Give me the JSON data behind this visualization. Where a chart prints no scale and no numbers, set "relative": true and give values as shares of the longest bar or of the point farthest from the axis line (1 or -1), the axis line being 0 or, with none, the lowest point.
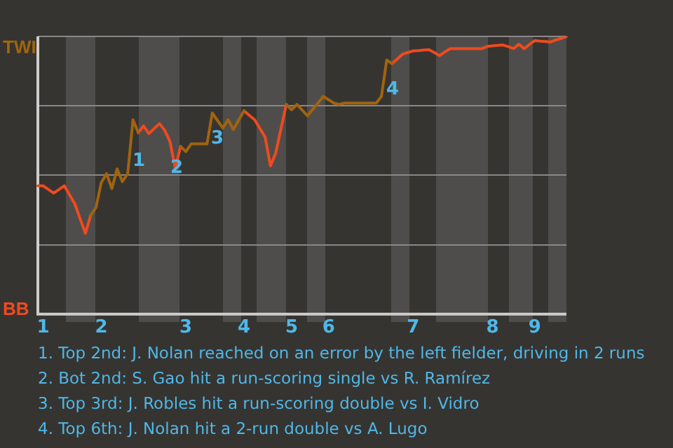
{
  "chart_data": {
    "type": "line",
    "relative": true,
    "categories": [
      null,
      "1",
      null,
      null,
      null,
      null,
      null,
      null,
      null,
      null,
      null,
      null,
      "2",
      null,
      null,
      null,
      null,
      null,
      null,
      null,
      null,
      null,
      null,
      null,
      null,
      null,
      null,
      null,
      "3",
      null,
      null,
      null,
      null,
      null,
      null,
      null,
      null,
      null,
      null,
      "4",
      null,
      null,
      null,
      null,
      null,
      null,
      null,
      null,
      "5",
      null,
      null,
      null,
      null,
      null,
      null,
      "6",
      null,
      null,
      null,
      null,
      null,
      null,
      null,
      null,
      null,
      null,
      null,
      null,
      null,
      null,
      null,
      "7",
      null,
      null,
      null,
      null,
      null,
      null,
      null,
      null,
      null,
      null,
      null,
      null,
      null,
      null,
      "8",
      null,
      null,
      null,
      null,
      null,
      null,
      null,
      "9",
      null,
      null,
      null,
      null,
      null,
      null
    ],
    "grid": "y",
    "marker": "none",
    "line_style": "solid",
    "series": [
      {
        "color": "#a0640f",
        "values": [
          null,
          null,
          null,
          null,
          null,
          null,
          null,
          null,
          null,
          null,
          0.356,
          0.384,
          0.474,
          0.506,
          0.452,
          0.523,
          0.477,
          0.506,
          0.7,
          0.653,
          null,
          null,
          null,
          null,
          null,
          null,
          null,
          0.604,
          0.585,
          0.613,
          0.613,
          0.613,
          0.613,
          0.724,
          0.697,
          0.67,
          0.7,
          0.665,
          0.699,
          0.732,
          null,
          null,
          null,
          null,
          null,
          null,
          null,
          0.755,
          0.736,
          0.755,
          0.735,
          0.714,
          0.737,
          0.76,
          0.784,
          0.772,
          0.76,
          0.755,
          0.76,
          0.76,
          0.76,
          0.76,
          0.76,
          0.76,
          0.76,
          0.784,
          0.915,
          0.902,
          null,
          null,
          null,
          null,
          null,
          null,
          null,
          null,
          null,
          null,
          null,
          null,
          null,
          null,
          null,
          null,
          null,
          null,
          null,
          null,
          null,
          null,
          null,
          null,
          null,
          null,
          null,
          null,
          null,
          null,
          null,
          null,
          null
        ]
      },
      {
        "color": "#f04a1e",
        "values": [
          0.462,
          0.462,
          0.449,
          0.436,
          0.449,
          0.462,
          0.43,
          0.397,
          0.343,
          0.291,
          0.356,
          null,
          null,
          null,
          null,
          null,
          null,
          null,
          null,
          0.653,
          0.678,
          0.65,
          0.668,
          0.686,
          0.662,
          0.621,
          0.526,
          0.604,
          null,
          null,
          null,
          null,
          null,
          null,
          null,
          null,
          null,
          null,
          null,
          0.732,
          0.716,
          0.7,
          0.669,
          0.637,
          0.534,
          0.58,
          0.668,
          0.755,
          null,
          null,
          null,
          null,
          null,
          null,
          null,
          null,
          null,
          null,
          null,
          null,
          null,
          null,
          null,
          null,
          null,
          null,
          null,
          0.902,
          0.919,
          0.936,
          0.942,
          0.948,
          0.949,
          0.951,
          0.952,
          0.942,
          0.931,
          0.944,
          0.956,
          0.956,
          0.956,
          0.956,
          0.956,
          0.956,
          0.956,
          0.964,
          0.966,
          0.968,
          0.969,
          0.963,
          0.956,
          0.972,
          0.956,
          0.971,
          0.985,
          0.983,
          0.982,
          0.98,
          0.987,
          0.993,
          1
        ]
      }
    ],
    "annotations": [
      "TWI",
      "BB",
      "1",
      "2",
      "3",
      "4",
      "1. Top 2nd: J. Nolan reached on an error by the left fielder, driving in 2 runs",
      "2. Bot 2nd: S. Gao hit a run-scoring single vs R. Ramírez",
      "3. Top 3rd: J. Robles hit a run-scoring double vs I. Vidro",
      "4. Top 6th: J. Nolan hit a 2-run double vs A. Lugo"
    ]
  }
}
